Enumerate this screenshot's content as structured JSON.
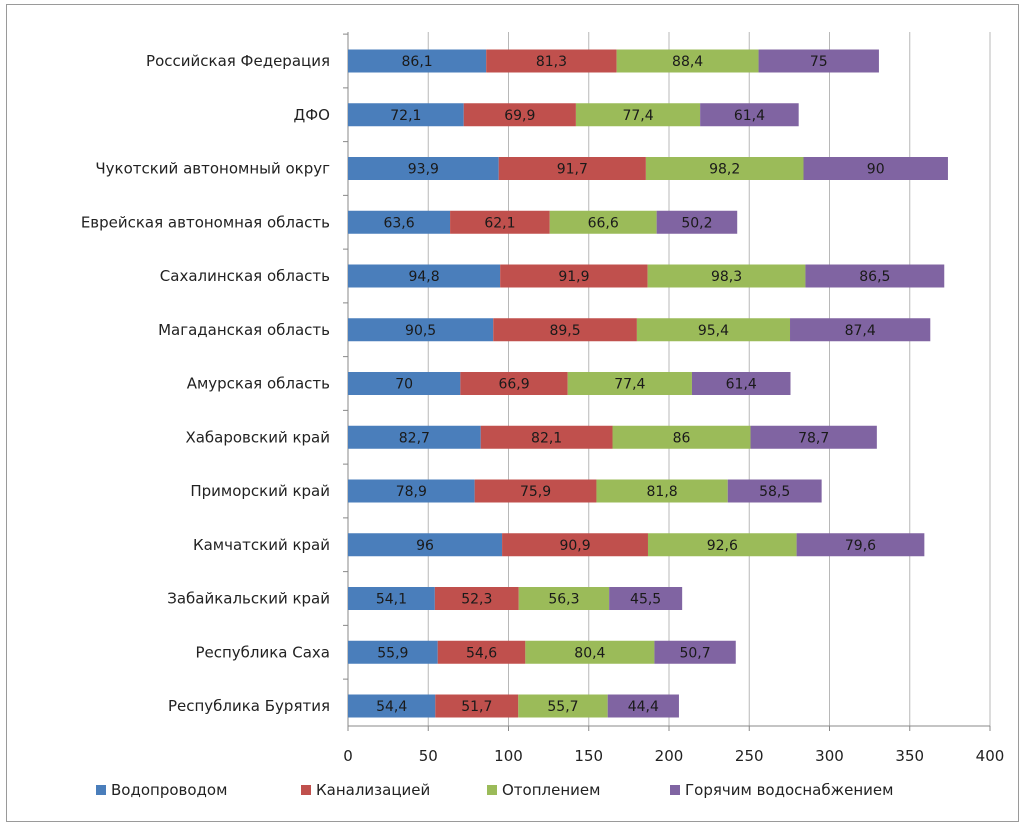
{
  "chart_data": {
    "type": "bar",
    "orientation": "horizontal",
    "stacked": true,
    "categories": [
      "Российская Федерация",
      "ДФО",
      "Чукотский автономный округ",
      "Еврейская автономная область",
      "Сахалинская область",
      "Магаданская область",
      "Амурская область",
      "Хабаровский край",
      "Приморский край",
      "Камчатский край",
      "Забайкальский край",
      "Республика Саха",
      "Республика Бурятия"
    ],
    "series": [
      {
        "name": "Водопроводом",
        "color": "#4a7ebb",
        "values": [
          86.1,
          72.1,
          93.9,
          63.6,
          94.8,
          90.5,
          70,
          82.7,
          78.9,
          96,
          54.1,
          55.9,
          54.4
        ],
        "labels": [
          "86,1",
          "72,1",
          "93,9",
          "63,6",
          "94,8",
          "90,5",
          "70",
          "82,7",
          "78,9",
          "96",
          "54,1",
          "55,9",
          "54,4"
        ]
      },
      {
        "name": "Канализацией",
        "color": "#c0504d",
        "values": [
          81.3,
          69.9,
          91.7,
          62.1,
          91.9,
          89.5,
          66.9,
          82.1,
          75.9,
          90.9,
          52.3,
          54.6,
          51.7
        ],
        "labels": [
          "81,3",
          "69,9",
          "91,7",
          "62,1",
          "91,9",
          "89,5",
          "66,9",
          "82,1",
          "75,9",
          "90,9",
          "52,3",
          "54,6",
          "51,7"
        ]
      },
      {
        "name": "Отоплением",
        "color": "#9bbb59",
        "values": [
          88.4,
          77.4,
          98.2,
          66.6,
          98.3,
          95.4,
          77.4,
          86,
          81.8,
          92.6,
          56.3,
          80.4,
          55.7
        ],
        "labels": [
          "88,4",
          "77,4",
          "98,2",
          "66,6",
          "98,3",
          "95,4",
          "77,4",
          "86",
          "81,8",
          "92,6",
          "56,3",
          "80,4",
          "55,7"
        ]
      },
      {
        "name": "Горячим водоснабжением",
        "color": "#8064a2",
        "values": [
          75,
          61.4,
          90,
          50.2,
          86.5,
          87.4,
          61.4,
          78.7,
          58.5,
          79.6,
          45.5,
          50.7,
          44.4
        ],
        "labels": [
          "75",
          "61,4",
          "90",
          "50,2",
          "86,5",
          "87,4",
          "61,4",
          "78,7",
          "58,5",
          "79,6",
          "45,5",
          "50,7",
          "44,4"
        ]
      }
    ],
    "xlim": [
      0,
      400
    ],
    "xticks": [
      0,
      50,
      100,
      150,
      200,
      250,
      300,
      350,
      400
    ],
    "grid": true,
    "legend_position": "bottom"
  }
}
